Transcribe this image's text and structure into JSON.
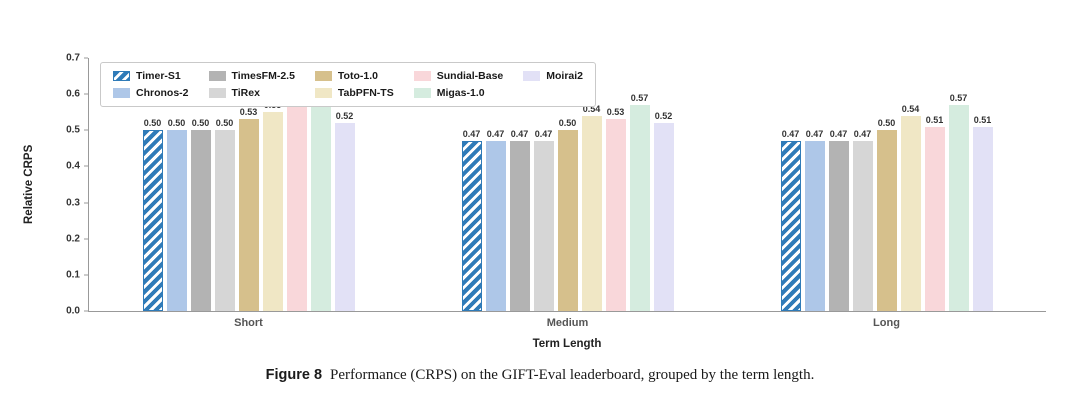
{
  "chart_data": {
    "type": "bar",
    "title": "",
    "xlabel": "Term Length",
    "ylabel": "Relative CRPS",
    "ylim": [
      0.0,
      0.7
    ],
    "yticks": [
      0.0,
      0.1,
      0.2,
      0.3,
      0.4,
      0.5,
      0.6,
      0.7
    ],
    "categories": [
      "Short",
      "Medium",
      "Long"
    ],
    "series": [
      {
        "name": "Timer-S1",
        "color": "#2f7bb8",
        "hatch": true,
        "values": [
          0.5,
          0.47,
          0.47
        ]
      },
      {
        "name": "Chronos-2",
        "color": "#aec7e8",
        "hatch": false,
        "values": [
          0.5,
          0.47,
          0.47
        ]
      },
      {
        "name": "TimesFM-2.5",
        "color": "#b3b3b3",
        "hatch": false,
        "values": [
          0.5,
          0.47,
          0.47
        ]
      },
      {
        "name": "TiRex",
        "color": "#d6d6d6",
        "hatch": false,
        "values": [
          0.5,
          0.47,
          0.47
        ]
      },
      {
        "name": "Toto-1.0",
        "color": "#d6c08c",
        "hatch": false,
        "values": [
          0.53,
          0.5,
          0.5
        ]
      },
      {
        "name": "TabPFN-TS",
        "color": "#f0e7c5",
        "hatch": false,
        "values": [
          0.55,
          0.54,
          0.54
        ]
      },
      {
        "name": "Sundial-Base",
        "color": "#f9d7da",
        "hatch": false,
        "values": [
          0.59,
          0.53,
          0.51
        ]
      },
      {
        "name": "Migas-1.0",
        "color": "#d5ecdf",
        "hatch": false,
        "values": [
          0.62,
          0.57,
          0.57
        ]
      },
      {
        "name": "Moirai2",
        "color": "#e2e1f6",
        "hatch": false,
        "values": [
          0.52,
          0.52,
          0.51
        ]
      }
    ],
    "grid": false,
    "legend_position": "top-left",
    "value_labels": true
  },
  "caption": {
    "label": "Figure 8",
    "text": "Performance (CRPS) on the GIFT-Eval leaderboard, grouped by the term length."
  }
}
